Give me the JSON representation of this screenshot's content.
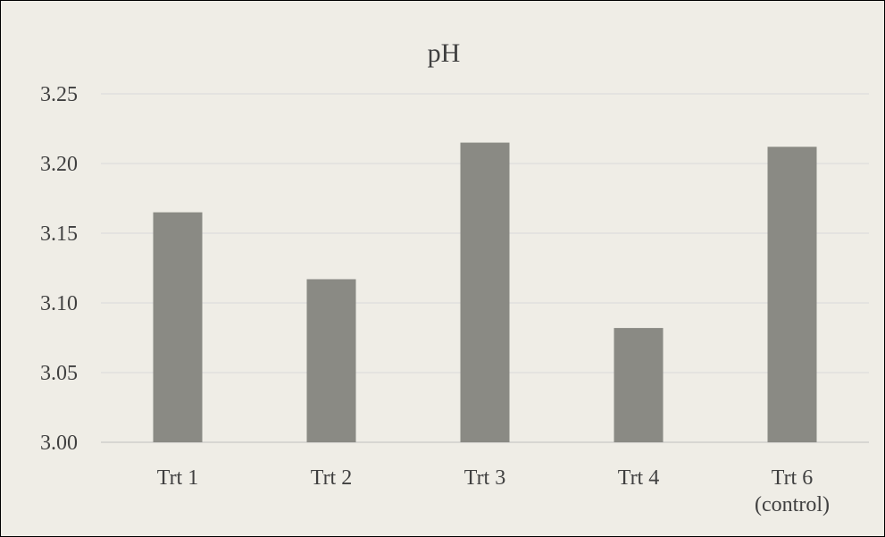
{
  "chart_data": {
    "type": "bar",
    "title": "pH",
    "categories": [
      "Trt 1",
      "Trt 2",
      "Trt 3",
      "Trt 4",
      "Trt 6 (control)"
    ],
    "category_lines": [
      [
        "Trt 1"
      ],
      [
        "Trt 2"
      ],
      [
        "Trt 3"
      ],
      [
        "Trt 4"
      ],
      [
        "Trt 6",
        "(control)"
      ]
    ],
    "values": [
      3.165,
      3.117,
      3.215,
      3.082,
      3.212
    ],
    "ylim": [
      3.0,
      3.25
    ],
    "yticks": [
      "3.00",
      "3.05",
      "3.10",
      "3.15",
      "3.20",
      "3.25"
    ],
    "xlabel": "",
    "ylabel": "",
    "grid": true,
    "legend": "none",
    "bar_color": "#8a8a84",
    "grid_color": "#d9d9d9",
    "background_color": "#efede6"
  }
}
